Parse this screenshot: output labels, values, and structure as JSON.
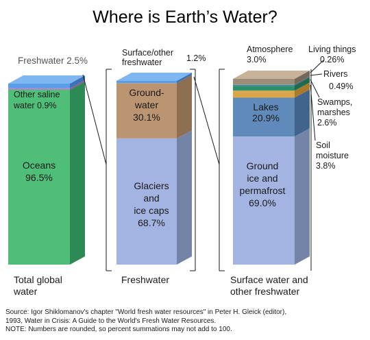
{
  "title": "Where is Earth’s Water?",
  "chart_data": [
    {
      "type": "bar",
      "name": "total",
      "caption": [
        "Total global",
        "water"
      ],
      "segments": [
        {
          "label": [
            "Oceans",
            "96.5%"
          ],
          "value": 96.5,
          "color": "#4fbe78",
          "side": "#2e8a55",
          "top": "#7dd59c"
        },
        {
          "label": [
            "Other saline",
            "water 0.9%"
          ],
          "value": 0.9,
          "color": "#b484c2",
          "side": "#8a5a99",
          "top": "#c9a2d4"
        },
        {
          "label": [
            "Freshwater 2.5%"
          ],
          "value": 2.5,
          "color": "#5a9de8",
          "side": "#3a72b5",
          "top": "#7eb6f0"
        }
      ]
    },
    {
      "type": "bar",
      "name": "freshwater",
      "caption": [
        "Freshwater"
      ],
      "segments": [
        {
          "label": [
            "Glaciers",
            "and",
            "ice caps",
            "68.7%"
          ],
          "value": 68.7,
          "color": "#a3b4e2",
          "side": "#7484a6",
          "top": "#c0cdee"
        },
        {
          "label": [
            "Ground-",
            "water",
            "30.1%"
          ],
          "value": 30.1,
          "color": "#bb9572",
          "side": "#8f6f52",
          "top": "#d2b08f"
        },
        {
          "label": [
            "Surface/other",
            "freshwater",
            "1.2%"
          ],
          "value": 1.2,
          "color": "#5a9de8",
          "side": "#3a72b5",
          "top": "#7eb6f0"
        }
      ]
    },
    {
      "type": "bar",
      "name": "surface",
      "caption": [
        "Surface water and",
        "other freshwater"
      ],
      "segments": [
        {
          "label": [
            "Ground",
            "ice and",
            "permafrost",
            "69.0%"
          ],
          "value": 69.0,
          "color": "#a3b4e2",
          "side": "#7484a6",
          "top": "#c0cdee"
        },
        {
          "label": [
            "Lakes",
            "20.9%"
          ],
          "value": 20.9,
          "color": "#5f8ab9",
          "side": "#42648c",
          "top": "#7ea5cf"
        },
        {
          "label": [
            "Soil",
            "moisture",
            "3.8%"
          ],
          "value": 3.8,
          "color": "#dba64a",
          "side": "#a87b2c",
          "top": "#e8c078"
        },
        {
          "label": [
            "Swamps,",
            "marshes",
            "2.6%"
          ],
          "value": 2.6,
          "color": "#2d8f6b",
          "side": "#1e6a4e",
          "top": "#4aae88"
        },
        {
          "label": [
            "Rivers",
            "0.49%"
          ],
          "value": 0.49,
          "color": "#4a7ea8",
          "side": "#335a7a",
          "top": "#6c9cc4"
        },
        {
          "label": [
            "Living things",
            "0.26%"
          ],
          "value": 0.26,
          "color": "#6aa37a",
          "side": "#4a7a58",
          "top": "#8cbf9a"
        },
        {
          "label": [
            "Atmosphere",
            "3.0%"
          ],
          "value": 3.0,
          "color": "#9e8c7a",
          "side": "#766858",
          "top": "#c8b39a"
        }
      ]
    }
  ],
  "source_lines": [
    "Source: Igor Shiklomanov's chapter \"World fresh water resources\" in Peter H. Gleick (editor),",
    "1993, Water in Crisis: A Guide to the World's Fresh Water Resources.",
    "NOTE: Numbers are rounded, so percent summations may not add to 100."
  ]
}
